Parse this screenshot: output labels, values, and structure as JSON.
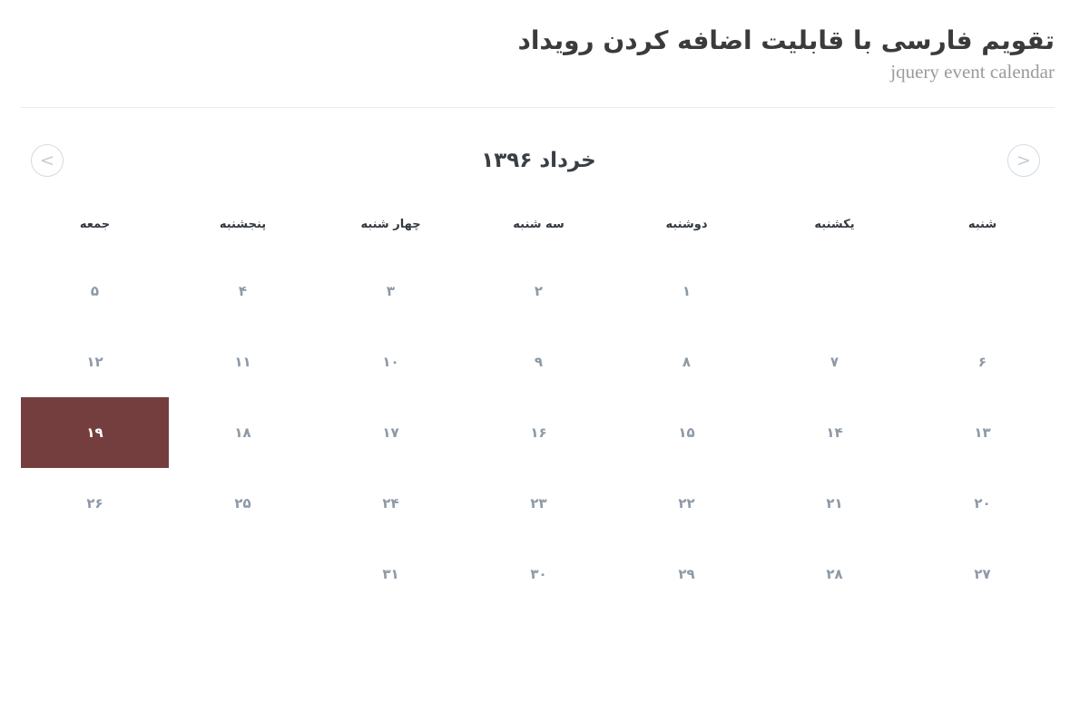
{
  "page": {
    "title_fa": "تقویم فارسی با قابلیت اضافه کردن رویداد",
    "subtitle_en": "jquery event calendar"
  },
  "calendar": {
    "month_label": "خرداد ۱۳۹۶",
    "nav_prev_label": "<",
    "nav_next_label": ">",
    "weekdays": [
      "شنبه",
      "یکشنبه",
      "دوشنبه",
      "سه شنبه",
      "چهار شنبه",
      "پنجشنبه",
      "جمعه"
    ],
    "weeks": [
      [
        "",
        "",
        "۱",
        "۲",
        "۳",
        "۴",
        "۵"
      ],
      [
        "۶",
        "۷",
        "۸",
        "۹",
        "۱۰",
        "۱۱",
        "۱۲"
      ],
      [
        "۱۳",
        "۱۴",
        "۱۵",
        "۱۶",
        "۱۷",
        "۱۸",
        "۱۹"
      ],
      [
        "۲۰",
        "۲۱",
        "۲۲",
        "۲۳",
        "۲۴",
        "۲۵",
        "۲۶"
      ],
      [
        "۲۷",
        "۲۸",
        "۲۹",
        "۳۰",
        "۳۱",
        "",
        ""
      ]
    ],
    "selected": {
      "week": 2,
      "day": 6,
      "value": "۱۹"
    },
    "colors": {
      "selected_bg": "#743E3E",
      "selected_text": "#FFFFFF",
      "day_text": "#8D99A6",
      "nav_border": "#D4DBE0"
    }
  }
}
